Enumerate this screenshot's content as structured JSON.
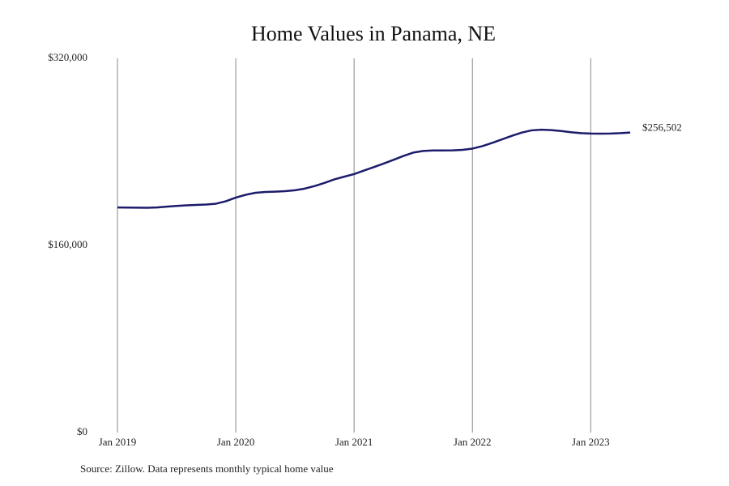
{
  "chart_data": {
    "type": "line",
    "title": "Home Values in Panama, NE",
    "source": "Source: Zillow. Data represents monthly typical home value",
    "x": [
      "2019-01",
      "2019-02",
      "2019-03",
      "2019-04",
      "2019-05",
      "2019-06",
      "2019-07",
      "2019-08",
      "2019-09",
      "2019-10",
      "2019-11",
      "2019-12",
      "2020-01",
      "2020-02",
      "2020-03",
      "2020-04",
      "2020-05",
      "2020-06",
      "2020-07",
      "2020-08",
      "2020-09",
      "2020-10",
      "2020-11",
      "2020-12",
      "2021-01",
      "2021-02",
      "2021-03",
      "2021-04",
      "2021-05",
      "2021-06",
      "2021-07",
      "2021-08",
      "2021-09",
      "2021-10",
      "2021-11",
      "2021-12",
      "2022-01",
      "2022-02",
      "2022-03",
      "2022-04",
      "2022-05",
      "2022-06",
      "2022-07",
      "2022-08",
      "2022-09",
      "2022-10",
      "2022-11",
      "2022-12",
      "2023-01",
      "2023-02",
      "2023-03",
      "2023-04",
      "2023-05"
    ],
    "series": [
      {
        "color": "#1c1c6b",
        "values": [
          192500,
          192400,
          192300,
          192200,
          192500,
          193200,
          193800,
          194300,
          194600,
          195000,
          195700,
          197800,
          200900,
          203300,
          205000,
          205700,
          206000,
          206400,
          207200,
          208600,
          210800,
          213500,
          216500,
          218800,
          221000,
          224000,
          227000,
          230000,
          233200,
          236500,
          239400,
          240800,
          241200,
          241200,
          241300,
          241700,
          242800,
          244900,
          247700,
          250700,
          253700,
          256500,
          258400,
          259000,
          258600,
          257800,
          256800,
          256000,
          255700,
          255600,
          255700,
          256000,
          256502
        ],
        "value_labels": [
          null,
          null,
          null,
          null,
          null,
          null,
          null,
          null,
          null,
          null,
          null,
          null,
          null,
          null,
          null,
          null,
          null,
          null,
          null,
          null,
          null,
          null,
          null,
          null,
          null,
          null,
          null,
          null,
          null,
          null,
          null,
          null,
          null,
          null,
          null,
          null,
          null,
          null,
          null,
          null,
          null,
          null,
          null,
          null,
          null,
          null,
          null,
          null,
          null,
          null,
          null,
          null,
          "$256,502"
        ]
      }
    ],
    "xlim": [
      "2019-01",
      "2023-05"
    ],
    "xticks": [
      {
        "value": "2019-01",
        "label": "Jan 2019"
      },
      {
        "value": "2020-01",
        "label": "Jan 2020"
      },
      {
        "value": "2021-01",
        "label": "Jan 2021"
      },
      {
        "value": "2022-01",
        "label": "Jan 2022"
      },
      {
        "value": "2023-01",
        "label": "Jan 2023"
      }
    ],
    "ylim": [
      0,
      320000
    ],
    "yticks": [
      {
        "value": 0,
        "label": "$0"
      },
      {
        "value": 160000,
        "label": "$160,000"
      },
      {
        "value": 320000,
        "label": "$320,000"
      }
    ],
    "grid": true
  }
}
